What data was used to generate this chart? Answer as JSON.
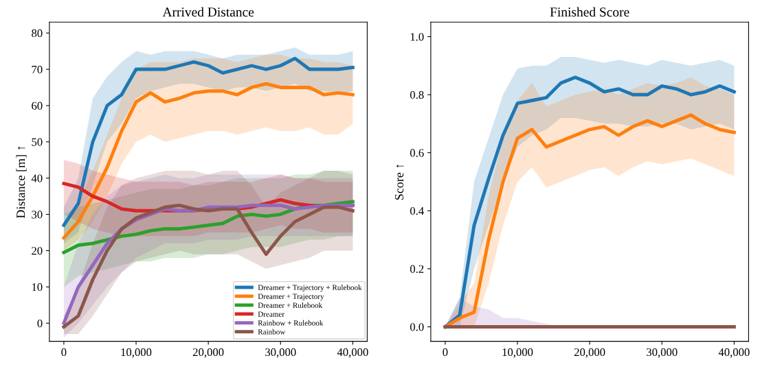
{
  "chart_data": [
    {
      "type": "line",
      "title": "Arrived Distance",
      "ylabel": "Distance [m] ↑",
      "x": [
        0,
        2000,
        4000,
        6000,
        8000,
        10000,
        12000,
        14000,
        16000,
        18000,
        20000,
        22000,
        24000,
        26000,
        28000,
        30000,
        32000,
        34000,
        36000,
        38000,
        40000
      ],
      "xlim": [
        -2000,
        42000
      ],
      "xticks": [
        0,
        {
          "value": 10000,
          "label": "10,000"
        },
        {
          "value": 20000,
          "label": "20,000"
        },
        {
          "value": 30000,
          "label": "30,000"
        },
        {
          "value": 40000,
          "label": "40,000"
        }
      ],
      "ylim": [
        -5,
        83
      ],
      "yticks": [
        0,
        10,
        20,
        30,
        40,
        50,
        60,
        70,
        80
      ],
      "grid": false,
      "legend": "bottom right",
      "line_style": "solid",
      "marker": "none",
      "series": [
        {
          "name": "Dreamer + Trajectory + Rulebook",
          "color": "#1f77b4",
          "values": [
            27,
            33,
            50,
            60,
            63,
            70,
            70,
            70,
            71,
            72,
            71,
            69,
            70,
            71,
            70,
            71,
            73,
            70,
            70,
            70,
            70.5
          ],
          "lower": [
            22,
            25,
            38,
            50,
            55,
            62,
            64,
            65,
            66,
            66,
            65,
            64,
            65,
            65,
            64,
            65,
            66,
            64,
            64,
            63,
            64
          ],
          "upper": [
            32,
            40,
            62,
            68,
            72,
            75,
            74,
            75,
            75,
            75,
            74,
            73,
            74,
            74,
            74,
            75,
            76,
            74,
            74,
            74,
            75
          ]
        },
        {
          "name": "Dreamer + Trajectory",
          "color": "#ff7f0e",
          "values": [
            23.5,
            28,
            35,
            43,
            53,
            61,
            63.5,
            61,
            62,
            63.5,
            64,
            64,
            63,
            65,
            66,
            65,
            65,
            65,
            63,
            63.5,
            63
          ],
          "lower": [
            20,
            23,
            28,
            35,
            44,
            50,
            52,
            50,
            51,
            52,
            53,
            53,
            52,
            53,
            54,
            53,
            53,
            54,
            52,
            52,
            55
          ],
          "upper": [
            27,
            33,
            42,
            52,
            62,
            70,
            72,
            72,
            72,
            73,
            73,
            73,
            72,
            73,
            74,
            74,
            73,
            73,
            72,
            72,
            71
          ]
        },
        {
          "name": "Dreamer + Rulebook",
          "color": "#2ca02c",
          "values": [
            19.5,
            21.5,
            22,
            23,
            24,
            24.5,
            25.5,
            26,
            26,
            26.5,
            27,
            27.5,
            29.5,
            30,
            29.5,
            30,
            31.5,
            32.5,
            32.5,
            33,
            33.5
          ],
          "lower": [
            10,
            13,
            14,
            15,
            16,
            17,
            17,
            18,
            18,
            18,
            19,
            19,
            20,
            21,
            21,
            21,
            22,
            23,
            23,
            24,
            24
          ],
          "upper": [
            30,
            32,
            33,
            34,
            35,
            36,
            37,
            37,
            37,
            38,
            38,
            39,
            40,
            40,
            40,
            40,
            41,
            41,
            42,
            42,
            42
          ]
        },
        {
          "name": "Dreamer",
          "color": "#d62728",
          "values": [
            38.5,
            37.5,
            35,
            33.5,
            31.5,
            31,
            31,
            31,
            31,
            31,
            31.5,
            31.5,
            31.5,
            32,
            33,
            34,
            33,
            32.5,
            32,
            32.5,
            32.5
          ],
          "lower": [
            30,
            28,
            26,
            25,
            24,
            24,
            24,
            24,
            24,
            24,
            25,
            25,
            25,
            25,
            26,
            27,
            26,
            26,
            25,
            25,
            25
          ],
          "upper": [
            45,
            44,
            42,
            41,
            40,
            39,
            39,
            39,
            39,
            38,
            39,
            39,
            39,
            39,
            40,
            41,
            40,
            40,
            39,
            39,
            39
          ]
        },
        {
          "name": "Rainbow + Rulebook",
          "color": "#9467bd",
          "values": [
            0,
            10,
            16,
            22,
            26,
            28.5,
            30,
            31.5,
            31,
            31,
            32,
            32,
            32,
            32.5,
            32.5,
            32.5,
            31.5,
            32,
            32.5,
            32.5,
            32.5
          ],
          "lower": [
            -4,
            0,
            5,
            10,
            14,
            18,
            20,
            22,
            22,
            22,
            23,
            23,
            23,
            24,
            24,
            24,
            24,
            24,
            24,
            24,
            24
          ],
          "upper": [
            10,
            22,
            30,
            35,
            38,
            39,
            40,
            41,
            40,
            40,
            41,
            41,
            41,
            41,
            41,
            41,
            40,
            40,
            40,
            40,
            40
          ]
        },
        {
          "name": "Rainbow",
          "color": "#8c564b",
          "values": [
            -1,
            2,
            12,
            20,
            26,
            29,
            30.5,
            32,
            32.5,
            31.5,
            31,
            31.5,
            31.5,
            25,
            19,
            24,
            28,
            30,
            32,
            32,
            31
          ],
          "lower": [
            -3,
            -3,
            2,
            8,
            14,
            17,
            18,
            19,
            20,
            19,
            19,
            19,
            19,
            17,
            15,
            16,
            17,
            18,
            20,
            20,
            20
          ],
          "upper": [
            2,
            10,
            22,
            32,
            38,
            40,
            41,
            42,
            42,
            42,
            41,
            42,
            42,
            38,
            32,
            36,
            38,
            40,
            42,
            42,
            41
          ]
        }
      ]
    },
    {
      "type": "line",
      "title": "Finished Score",
      "ylabel": "Score ↑",
      "x": [
        0,
        2000,
        4000,
        6000,
        8000,
        10000,
        12000,
        14000,
        16000,
        18000,
        20000,
        22000,
        24000,
        26000,
        28000,
        30000,
        32000,
        34000,
        36000,
        38000,
        40000
      ],
      "xlim": [
        -2000,
        42000
      ],
      "xticks": [
        0,
        {
          "value": 10000,
          "label": "10,000"
        },
        {
          "value": 20000,
          "label": "20,000"
        },
        {
          "value": 30000,
          "label": "30,000"
        },
        {
          "value": 40000,
          "label": "40,000"
        }
      ],
      "ylim": [
        -0.05,
        1.05
      ],
      "yticks": [
        {
          "value": 0,
          "label": "0.0"
        },
        0.2,
        0.4,
        0.6,
        0.8,
        {
          "value": 1,
          "label": "1.0"
        }
      ],
      "grid": false,
      "line_style": "solid",
      "marker": "none",
      "series": [
        {
          "color": "#1f77b4",
          "values": [
            0,
            0.04,
            0.35,
            0.51,
            0.66,
            0.77,
            0.78,
            0.79,
            0.84,
            0.86,
            0.84,
            0.81,
            0.82,
            0.8,
            0.8,
            0.83,
            0.82,
            0.8,
            0.81,
            0.83,
            0.81
          ],
          "lower": [
            0,
            0,
            0.2,
            0.35,
            0.5,
            0.62,
            0.66,
            0.68,
            0.72,
            0.72,
            0.71,
            0.7,
            0.7,
            0.69,
            0.69,
            0.7,
            0.7,
            0.68,
            0.69,
            0.7,
            0.68
          ],
          "upper": [
            0,
            0.1,
            0.5,
            0.65,
            0.8,
            0.89,
            0.9,
            0.9,
            0.93,
            0.93,
            0.92,
            0.91,
            0.92,
            0.91,
            0.9,
            0.92,
            0.91,
            0.9,
            0.91,
            0.92,
            0.9
          ]
        },
        {
          "color": "#ff7f0e",
          "values": [
            0,
            0.03,
            0.05,
            0.3,
            0.5,
            0.65,
            0.68,
            0.62,
            0.64,
            0.66,
            0.68,
            0.69,
            0.66,
            0.69,
            0.71,
            0.69,
            0.71,
            0.73,
            0.7,
            0.68,
            0.67
          ],
          "lower": [
            0,
            0,
            0,
            0.15,
            0.35,
            0.5,
            0.55,
            0.48,
            0.5,
            0.52,
            0.54,
            0.55,
            0.52,
            0.55,
            0.57,
            0.56,
            0.57,
            0.58,
            0.56,
            0.54,
            0.52
          ],
          "upper": [
            0,
            0.08,
            0.15,
            0.45,
            0.65,
            0.78,
            0.84,
            0.76,
            0.78,
            0.8,
            0.81,
            0.82,
            0.8,
            0.82,
            0.84,
            0.83,
            0.84,
            0.86,
            0.83,
            0.82,
            0.8
          ]
        },
        {
          "color": "#9467bd",
          "values": [
            null,
            null,
            null,
            null,
            null,
            null,
            null,
            null,
            null,
            null,
            null,
            null,
            null,
            null,
            null,
            null,
            null,
            null,
            null,
            null,
            null
          ],
          "lower": [
            0,
            0,
            0,
            0,
            0,
            0,
            0,
            0,
            0,
            0,
            0,
            0,
            0,
            0,
            0,
            0,
            0,
            0,
            0,
            0,
            0
          ],
          "upper": [
            0,
            0.1,
            0.07,
            0.06,
            0.03,
            0.03,
            0.02,
            0.01,
            0,
            0,
            0,
            0,
            0,
            0,
            0,
            0,
            0,
            0,
            0,
            0,
            0
          ]
        },
        {
          "color": "#8c564b",
          "values": [
            0,
            0,
            0,
            0,
            0,
            0,
            0,
            0,
            0,
            0,
            0,
            0,
            0,
            0,
            0,
            0,
            0,
            0,
            0,
            0,
            0
          ]
        }
      ]
    }
  ]
}
